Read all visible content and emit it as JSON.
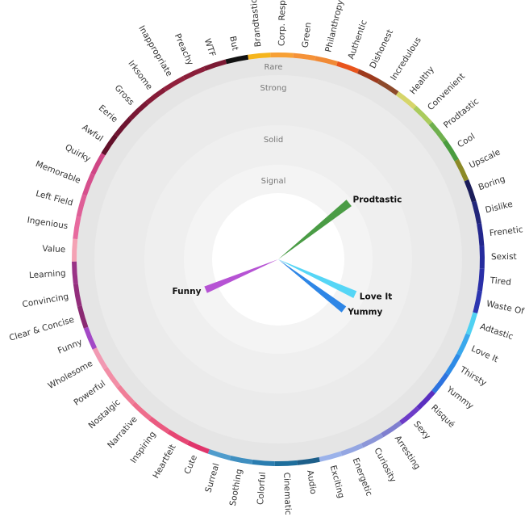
{
  "chart_data": {
    "type": "radial-bar",
    "rings": [
      "Rare",
      "Strong",
      "Solid",
      "Signal"
    ],
    "sectors": [
      {
        "label": "Brandtastic",
        "color": "#f5b51c"
      },
      {
        "label": "Corp. Resp.",
        "color": "#f7a035"
      },
      {
        "label": "Green",
        "color": "#f59238"
      },
      {
        "label": "Philanthropy",
        "color": "#f08a36"
      },
      {
        "label": "Authentic",
        "color": "#e8541c"
      },
      {
        "label": "Dishonest",
        "color": "#9d3a1d"
      },
      {
        "label": "Incredulous",
        "color": "#8c4a2b"
      },
      {
        "label": "Healthy",
        "color": "#d6d56a"
      },
      {
        "label": "Convenient",
        "color": "#aacb5d"
      },
      {
        "label": "Prodtastic",
        "color": "#6fb04e"
      },
      {
        "label": "Cool",
        "color": "#4a9c3f"
      },
      {
        "label": "Upscale",
        "color": "#8c8a27"
      },
      {
        "label": "Boring",
        "color": "#1b1d5a"
      },
      {
        "label": "Dislike",
        "color": "#22267a"
      },
      {
        "label": "Frenetic",
        "color": "#23278d"
      },
      {
        "label": "Sexist",
        "color": "#262c9e"
      },
      {
        "label": "Tired",
        "color": "#2a2fa8"
      },
      {
        "label": "Waste Of",
        "color": "#2c35b0"
      },
      {
        "label": "Adtastic",
        "color": "#4fd1f2"
      },
      {
        "label": "Love It",
        "color": "#3aa8ec"
      },
      {
        "label": "Thirsty",
        "color": "#2e8be6"
      },
      {
        "label": "Yummy",
        "color": "#2d73df"
      },
      {
        "label": "Risqué",
        "color": "#5a2fc0"
      },
      {
        "label": "Sexy",
        "color": "#6d3cc8"
      },
      {
        "label": "Arresting",
        "color": "#7f7fcf"
      },
      {
        "label": "Curiosity",
        "color": "#8c96d8"
      },
      {
        "label": "Energetic",
        "color": "#94a6e2"
      },
      {
        "label": "Exciting",
        "color": "#9bb2ea"
      },
      {
        "label": "Audio",
        "color": "#1d5f8a"
      },
      {
        "label": "Cinematic",
        "color": "#1e6e9c"
      },
      {
        "label": "Colorful",
        "color": "#2a7db0"
      },
      {
        "label": "Soothing",
        "color": "#3f8fc0"
      },
      {
        "label": "Surreal",
        "color": "#4f9ccc"
      },
      {
        "label": "Cute",
        "color": "#e0356b"
      },
      {
        "label": "Heartfelt",
        "color": "#e64673"
      },
      {
        "label": "Inspiring",
        "color": "#ea5a80"
      },
      {
        "label": "Narrative",
        "color": "#ee6e8c"
      },
      {
        "label": "Nostalgic",
        "color": "#f07e98"
      },
      {
        "label": "Powerful",
        "color": "#f28ea6"
      },
      {
        "label": "Wholesome",
        "color": "#f199b2"
      },
      {
        "label": "Funny",
        "color": "#a349c6"
      },
      {
        "label": "Clear & Concise",
        "color": "#8a2a72"
      },
      {
        "label": "Convincing",
        "color": "#932e7c"
      },
      {
        "label": "Learning",
        "color": "#9a3386"
      },
      {
        "label": "Value",
        "color": "#f4a2b4"
      },
      {
        "label": "Ingenious",
        "color": "#e76a9e"
      },
      {
        "label": "Left Field",
        "color": "#de5f97"
      },
      {
        "label": "Memorable",
        "color": "#d6508d"
      },
      {
        "label": "Quirky",
        "color": "#cf4685"
      },
      {
        "label": "Awful",
        "color": "#62102a"
      },
      {
        "label": "Eerie",
        "color": "#6e1430"
      },
      {
        "label": "Gross",
        "color": "#7a1834"
      },
      {
        "label": "Irksome",
        "color": "#861c38"
      },
      {
        "label": "Inappropriate",
        "color": "#90203c"
      },
      {
        "label": "Preachy",
        "color": "#8a1e3a"
      },
      {
        "label": "WTF",
        "color": "#7c1a34"
      },
      {
        "label": "But",
        "color": "#111111"
      }
    ],
    "values": [
      {
        "label": "Prodtastic",
        "value": 0.92,
        "color": "#4a9c45"
      },
      {
        "label": "Love It",
        "value": 0.86,
        "color": "#56d6f6"
      },
      {
        "label": "Yummy",
        "value": 0.84,
        "color": "#2e86e6"
      },
      {
        "label": "Funny",
        "value": 0.8,
        "color": "#b653d4"
      }
    ]
  }
}
